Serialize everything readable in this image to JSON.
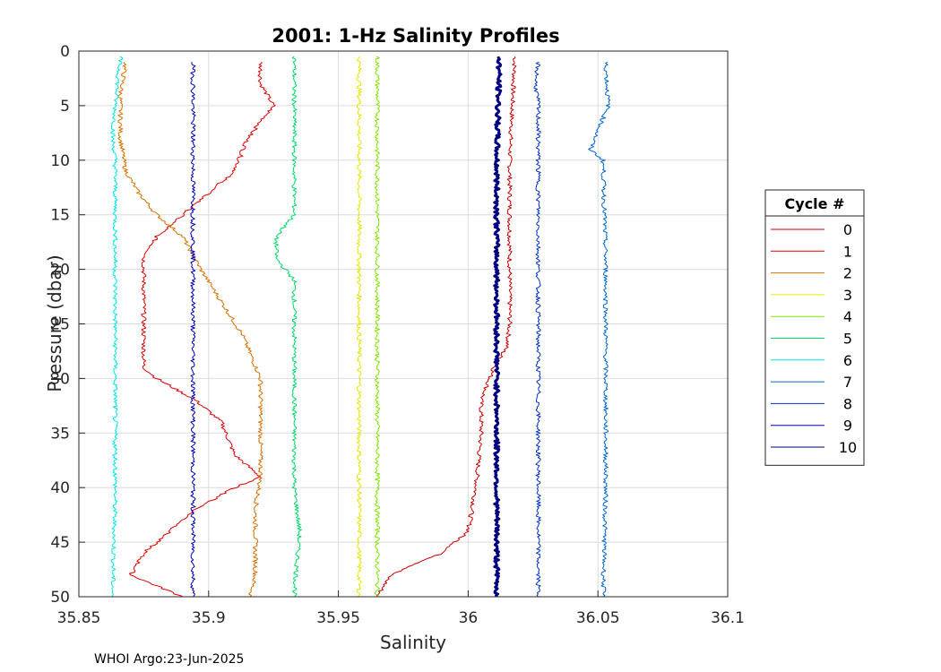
{
  "chart_data": {
    "type": "line",
    "title": "2001: 1-Hz Salinity Profiles",
    "xlabel": "Salinity",
    "ylabel": "Pressure (dbar)",
    "xlim": [
      35.85,
      36.1
    ],
    "ylim": [
      0,
      50
    ],
    "y_reversed": true,
    "grid": true,
    "x_ticks": [
      "35.85",
      "35.9",
      "35.95",
      "36",
      "36.05",
      "36.1"
    ],
    "y_ticks": [
      "0",
      "5",
      "10",
      "15",
      "20",
      "25",
      "30",
      "35",
      "40",
      "45",
      "50"
    ],
    "legend": {
      "title": "Cycle #",
      "placement": "right-outside"
    },
    "series": [
      {
        "name": "0",
        "color": "#cc0000",
        "points": [
          [
            36.018,
            0.5
          ],
          [
            36.017,
            5
          ],
          [
            36.016,
            10
          ],
          [
            36.016,
            15
          ],
          [
            36.016,
            20
          ],
          [
            36.016,
            25
          ],
          [
            36.015,
            27
          ],
          [
            36.01,
            29
          ],
          [
            36.005,
            32
          ],
          [
            36.005,
            35
          ],
          [
            36.003,
            40
          ],
          [
            36.0,
            44
          ],
          [
            35.99,
            46
          ],
          [
            35.97,
            48
          ],
          [
            35.965,
            50
          ]
        ]
      },
      {
        "name": "1",
        "color": "#dd0000",
        "points": [
          [
            35.92,
            1
          ],
          [
            35.92,
            3
          ],
          [
            35.925,
            5
          ],
          [
            35.915,
            8
          ],
          [
            35.91,
            11
          ],
          [
            35.9,
            13
          ],
          [
            35.89,
            15
          ],
          [
            35.88,
            17
          ],
          [
            35.875,
            19
          ],
          [
            35.875,
            22
          ],
          [
            35.875,
            25
          ],
          [
            35.875,
            29
          ],
          [
            35.88,
            30
          ],
          [
            35.895,
            32
          ],
          [
            35.905,
            34
          ],
          [
            35.91,
            37
          ],
          [
            35.92,
            39
          ],
          [
            35.91,
            40
          ],
          [
            35.895,
            42
          ],
          [
            35.885,
            44
          ],
          [
            35.875,
            46
          ],
          [
            35.87,
            48
          ],
          [
            35.89,
            50
          ]
        ]
      },
      {
        "name": "2",
        "color": "#d97000",
        "points": [
          [
            35.868,
            1
          ],
          [
            35.866,
            4
          ],
          [
            35.866,
            8
          ],
          [
            35.868,
            11
          ],
          [
            35.873,
            13
          ],
          [
            35.88,
            15
          ],
          [
            35.89,
            17
          ],
          [
            35.897,
            20
          ],
          [
            35.905,
            23
          ],
          [
            35.913,
            26
          ],
          [
            35.92,
            30
          ],
          [
            35.92,
            35
          ],
          [
            35.92,
            39
          ],
          [
            35.918,
            42
          ],
          [
            35.918,
            45
          ],
          [
            35.918,
            48
          ],
          [
            35.916,
            50
          ]
        ]
      },
      {
        "name": "3",
        "color": "#e6e600",
        "points": [
          [
            35.958,
            0.5
          ],
          [
            35.958,
            10
          ],
          [
            35.958,
            20
          ],
          [
            35.958,
            30
          ],
          [
            35.958,
            40
          ],
          [
            35.958,
            50
          ]
        ]
      },
      {
        "name": "4",
        "color": "#80e600",
        "points": [
          [
            35.965,
            0.5
          ],
          [
            35.965,
            10
          ],
          [
            35.965,
            20
          ],
          [
            35.965,
            30
          ],
          [
            35.965,
            40
          ],
          [
            35.965,
            50
          ]
        ]
      },
      {
        "name": "5",
        "color": "#00d966",
        "points": [
          [
            35.933,
            0.5
          ],
          [
            35.933,
            5
          ],
          [
            35.933,
            10
          ],
          [
            35.933,
            15
          ],
          [
            35.926,
            17
          ],
          [
            35.926,
            19
          ],
          [
            35.933,
            21
          ],
          [
            35.933,
            30
          ],
          [
            35.933,
            40
          ],
          [
            35.935,
            44
          ],
          [
            35.933,
            50
          ]
        ]
      },
      {
        "name": "6",
        "color": "#00e6e6",
        "points": [
          [
            35.866,
            0.5
          ],
          [
            35.864,
            5
          ],
          [
            35.863,
            8
          ],
          [
            35.864,
            10
          ],
          [
            35.864,
            20
          ],
          [
            35.864,
            30
          ],
          [
            35.864,
            40
          ],
          [
            35.863,
            50
          ]
        ]
      },
      {
        "name": "7",
        "color": "#0066cc",
        "points": [
          [
            36.053,
            1
          ],
          [
            36.054,
            5
          ],
          [
            36.047,
            9
          ],
          [
            36.052,
            10
          ],
          [
            36.053,
            20
          ],
          [
            36.053,
            30
          ],
          [
            36.053,
            40
          ],
          [
            36.052,
            50
          ]
        ]
      },
      {
        "name": "8",
        "color": "#0033cc",
        "points": [
          [
            36.027,
            1
          ],
          [
            36.026,
            3
          ],
          [
            36.027,
            5
          ],
          [
            36.027,
            10
          ],
          [
            36.027,
            20
          ],
          [
            36.027,
            30
          ],
          [
            36.027,
            40
          ],
          [
            36.027,
            50
          ]
        ]
      },
      {
        "name": "9",
        "color": "#0000bb",
        "points": [
          [
            35.894,
            1
          ],
          [
            35.894,
            10
          ],
          [
            35.894,
            20
          ],
          [
            35.894,
            30
          ],
          [
            35.894,
            40
          ],
          [
            35.894,
            50
          ]
        ]
      },
      {
        "name": "10",
        "color": "#000080",
        "points": [
          [
            36.012,
            0.5
          ],
          [
            36.011,
            10
          ],
          [
            36.011,
            20
          ],
          [
            36.011,
            30
          ],
          [
            36.011,
            40
          ],
          [
            36.011,
            50
          ]
        ]
      }
    ],
    "footer": "WHOI Argo:23-Jun-2025"
  }
}
